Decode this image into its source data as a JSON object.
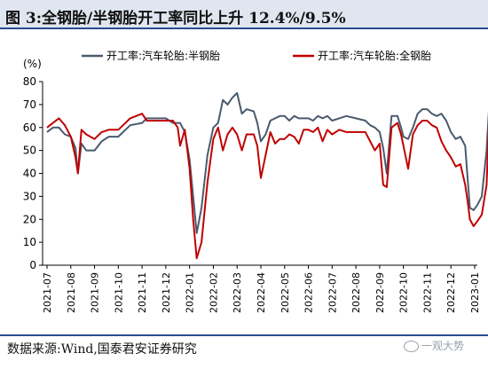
{
  "figure": {
    "title": "图 3:全钢胎/半钢胎开工率同比上升 12.4%/9.5%",
    "source": "数据来源:Wind,国泰君安证券研究",
    "watermark": "一观大势"
  },
  "chart_data": {
    "type": "line",
    "unit_label": "(%)",
    "ylim": [
      0,
      80
    ],
    "yticks": [
      0,
      10,
      20,
      30,
      40,
      50,
      60,
      70,
      80
    ],
    "categories": [
      "2021-07",
      "2021-08",
      "2021-09",
      "2021-10",
      "2021-11",
      "2021-12",
      "2022-01",
      "2022-02",
      "2022-03",
      "2022-04",
      "2022-05",
      "2022-06",
      "2022-07",
      "2022-08",
      "2022-09",
      "2022-10",
      "2022-11",
      "2022-12",
      "2023-01"
    ],
    "legend_position": "top",
    "grid": false,
    "series": [
      {
        "name": "开工率:汽车轮胎:半钢胎",
        "color": "#4a5a6e",
        "points": [
          [
            0,
            58
          ],
          [
            0.25,
            60
          ],
          [
            0.5,
            60
          ],
          [
            0.75,
            57
          ],
          [
            1,
            56
          ],
          [
            1.2,
            51
          ],
          [
            1.3,
            40
          ],
          [
            1.45,
            53
          ],
          [
            1.65,
            50
          ],
          [
            2,
            50
          ],
          [
            2.3,
            54
          ],
          [
            2.6,
            56
          ],
          [
            3,
            56
          ],
          [
            3.2,
            58
          ],
          [
            3.5,
            61
          ],
          [
            4,
            62
          ],
          [
            4.2,
            64
          ],
          [
            4.5,
            64
          ],
          [
            5,
            64
          ],
          [
            5.3,
            62
          ],
          [
            5.6,
            62
          ],
          [
            5.8,
            58
          ],
          [
            6,
            46
          ],
          [
            6.15,
            30
          ],
          [
            6.3,
            14
          ],
          [
            6.5,
            25
          ],
          [
            6.75,
            48
          ],
          [
            7,
            60
          ],
          [
            7.2,
            62
          ],
          [
            7.4,
            72
          ],
          [
            7.6,
            70
          ],
          [
            7.8,
            73
          ],
          [
            8,
            75
          ],
          [
            8.2,
            66
          ],
          [
            8.4,
            68
          ],
          [
            8.7,
            67
          ],
          [
            8.85,
            62
          ],
          [
            9,
            54
          ],
          [
            9.2,
            57
          ],
          [
            9.4,
            63
          ],
          [
            9.6,
            64
          ],
          [
            9.8,
            65
          ],
          [
            10,
            65
          ],
          [
            10.2,
            63
          ],
          [
            10.4,
            65
          ],
          [
            10.6,
            64
          ],
          [
            10.8,
            64
          ],
          [
            11,
            64
          ],
          [
            11.2,
            63
          ],
          [
            11.4,
            65
          ],
          [
            11.6,
            64
          ],
          [
            11.8,
            65
          ],
          [
            12,
            63
          ],
          [
            12.3,
            64
          ],
          [
            12.6,
            65
          ],
          [
            13,
            64
          ],
          [
            13.4,
            63
          ],
          [
            13.6,
            61
          ],
          [
            13.8,
            60
          ],
          [
            14,
            58
          ],
          [
            14.15,
            51
          ],
          [
            14.3,
            40
          ],
          [
            14.5,
            65
          ],
          [
            14.75,
            65
          ],
          [
            14.9,
            60
          ],
          [
            15,
            56
          ],
          [
            15.2,
            55
          ],
          [
            15.4,
            60
          ],
          [
            15.6,
            66
          ],
          [
            15.8,
            68
          ],
          [
            16,
            68
          ],
          [
            16.2,
            66
          ],
          [
            16.4,
            65
          ],
          [
            16.6,
            66
          ],
          [
            16.8,
            63
          ],
          [
            17,
            58
          ],
          [
            17.2,
            55
          ],
          [
            17.4,
            56
          ],
          [
            17.6,
            52
          ],
          [
            17.7,
            38
          ],
          [
            17.8,
            25
          ],
          [
            17.95,
            24
          ],
          [
            18.1,
            26
          ],
          [
            18.3,
            30
          ],
          [
            18.5,
            50
          ],
          [
            18.6,
            68
          ]
        ]
      },
      {
        "name": "开工率:汽车轮胎:全钢胎",
        "color": "#c00000",
        "points": [
          [
            0,
            60
          ],
          [
            0.25,
            62
          ],
          [
            0.5,
            64
          ],
          [
            0.75,
            61
          ],
          [
            1,
            56
          ],
          [
            1.2,
            47
          ],
          [
            1.3,
            40
          ],
          [
            1.45,
            59
          ],
          [
            1.65,
            57
          ],
          [
            2,
            55
          ],
          [
            2.3,
            58
          ],
          [
            2.6,
            59
          ],
          [
            3,
            59
          ],
          [
            3.2,
            61
          ],
          [
            3.5,
            64
          ],
          [
            4,
            66
          ],
          [
            4.2,
            63
          ],
          [
            4.5,
            63
          ],
          [
            5,
            63
          ],
          [
            5.3,
            63
          ],
          [
            5.5,
            60
          ],
          [
            5.6,
            52
          ],
          [
            5.8,
            59
          ],
          [
            6,
            42
          ],
          [
            6.15,
            20
          ],
          [
            6.3,
            3
          ],
          [
            6.5,
            10
          ],
          [
            6.75,
            36
          ],
          [
            7,
            55
          ],
          [
            7.2,
            60
          ],
          [
            7.4,
            50
          ],
          [
            7.6,
            57
          ],
          [
            7.8,
            60
          ],
          [
            8,
            57
          ],
          [
            8.2,
            50
          ],
          [
            8.4,
            57
          ],
          [
            8.7,
            57
          ],
          [
            8.85,
            52
          ],
          [
            9,
            38
          ],
          [
            9.2,
            48
          ],
          [
            9.4,
            58
          ],
          [
            9.6,
            53
          ],
          [
            9.8,
            55
          ],
          [
            10,
            55
          ],
          [
            10.2,
            57
          ],
          [
            10.4,
            56
          ],
          [
            10.6,
            53
          ],
          [
            10.8,
            59
          ],
          [
            11,
            59
          ],
          [
            11.2,
            58
          ],
          [
            11.4,
            60
          ],
          [
            11.6,
            54
          ],
          [
            11.8,
            59
          ],
          [
            12,
            57
          ],
          [
            12.3,
            59
          ],
          [
            12.6,
            58
          ],
          [
            13,
            58
          ],
          [
            13.4,
            58
          ],
          [
            13.6,
            54
          ],
          [
            13.8,
            50
          ],
          [
            14,
            53
          ],
          [
            14.15,
            35
          ],
          [
            14.3,
            34
          ],
          [
            14.5,
            60
          ],
          [
            14.75,
            62
          ],
          [
            14.9,
            57
          ],
          [
            15,
            52
          ],
          [
            15.2,
            42
          ],
          [
            15.4,
            57
          ],
          [
            15.6,
            61
          ],
          [
            15.8,
            63
          ],
          [
            16,
            63
          ],
          [
            16.2,
            61
          ],
          [
            16.4,
            60
          ],
          [
            16.6,
            54
          ],
          [
            16.8,
            50
          ],
          [
            17,
            47
          ],
          [
            17.2,
            43
          ],
          [
            17.4,
            44
          ],
          [
            17.6,
            35
          ],
          [
            17.7,
            28
          ],
          [
            17.8,
            20
          ],
          [
            17.95,
            17
          ],
          [
            18.1,
            19
          ],
          [
            18.3,
            22
          ],
          [
            18.5,
            35
          ],
          [
            18.6,
            62
          ]
        ]
      }
    ]
  }
}
